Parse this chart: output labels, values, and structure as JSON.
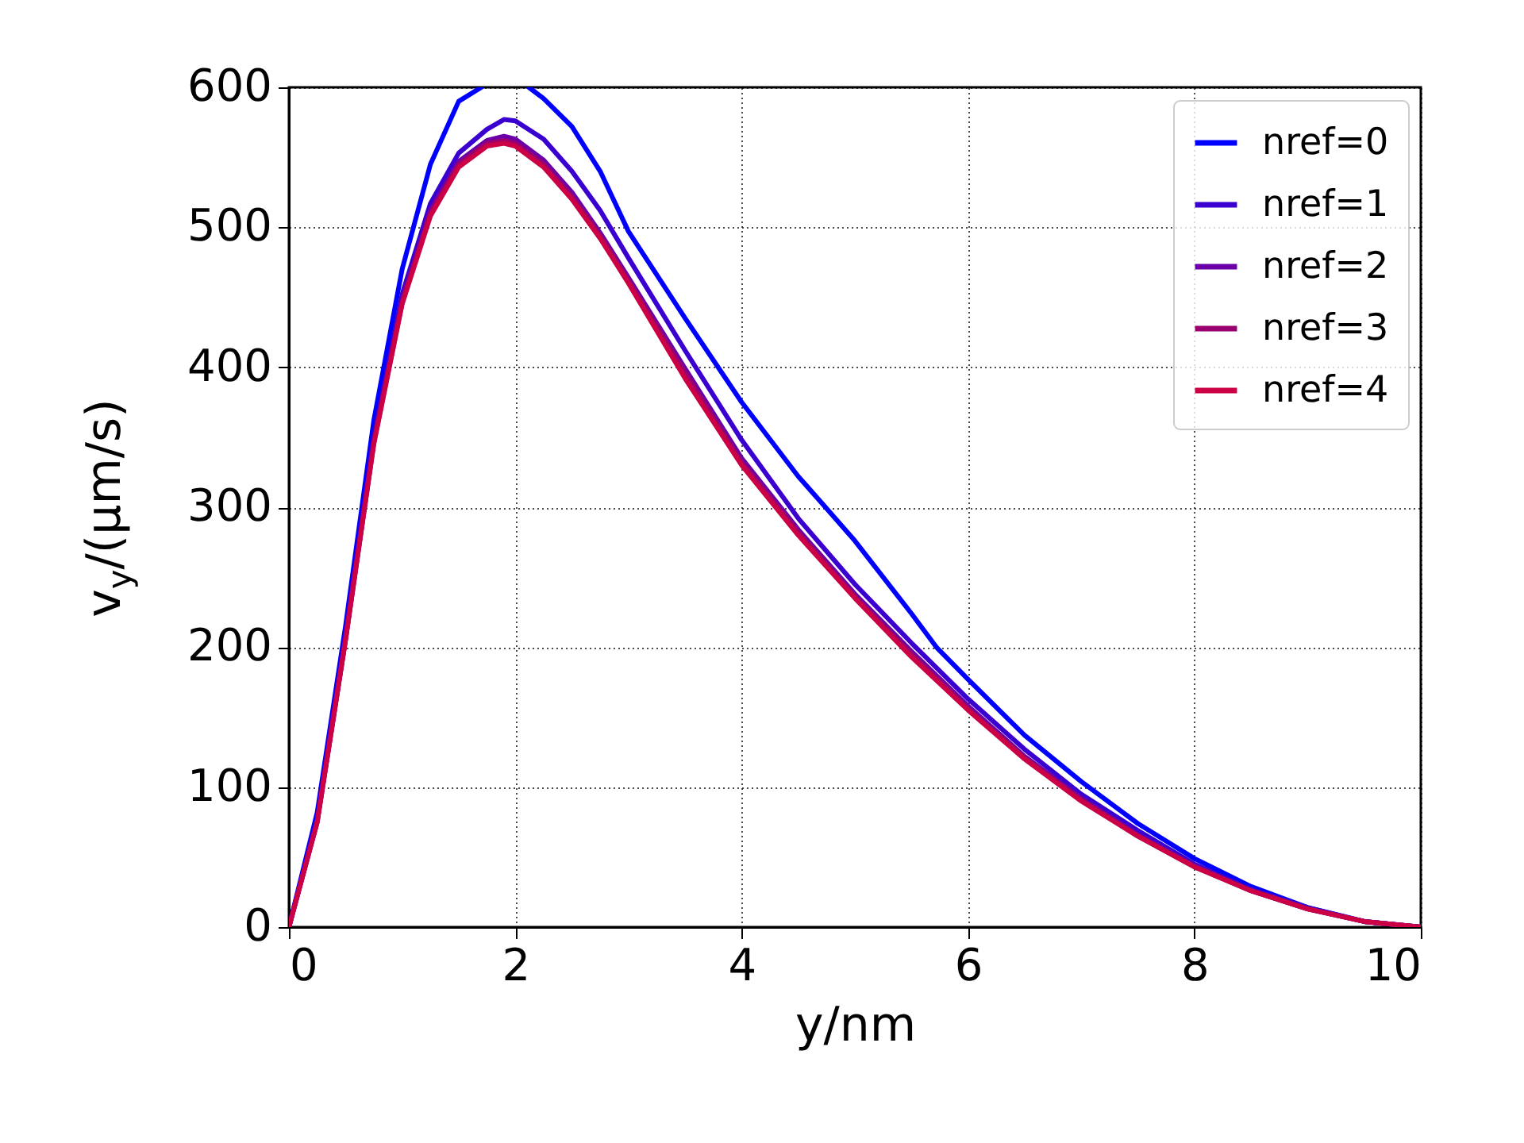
{
  "chart_data": {
    "type": "line",
    "xlabel": "y/nm",
    "ylabel": "v$_{y}$/(μm/s)",
    "xlim": [
      0,
      10
    ],
    "xticks": [
      0,
      2,
      4,
      6,
      8,
      10
    ],
    "ylim": [
      0,
      600
    ],
    "yticks": [
      0,
      100,
      200,
      300,
      400,
      500,
      600
    ],
    "grid": true,
    "legend": "top right",
    "line_style": "solid",
    "marker": "none",
    "x": [
      0,
      0.25,
      0.5,
      0.75,
      1,
      1.25,
      1.5,
      1.75,
      1.9,
      2,
      2.25,
      2.5,
      2.75,
      3,
      3.5,
      4,
      4.5,
      5,
      5.5,
      6,
      6.5,
      7,
      7.5,
      8,
      8.5,
      9,
      9.5,
      10
    ],
    "series": [
      {
        "name": "nref=0",
        "color": "#0000ff",
        "x": [
          0,
          0.25,
          0.5,
          0.75,
          1,
          1.25,
          1.5,
          1.7,
          1.75,
          2,
          2.12,
          2.25,
          2.5,
          2.75,
          3,
          3.5,
          4,
          4.5,
          4.74,
          5,
          5.5,
          5.72,
          6,
          6.5,
          7,
          7.5,
          8,
          8.5,
          9,
          9.5,
          10
        ],
        "values": [
          0,
          82,
          215,
          362,
          470,
          545,
          590,
          600,
          null,
          null,
          600,
          592,
          572,
          540,
          497,
          435,
          375,
          322,
          300,
          276,
          224,
          200,
          177,
          137,
          104,
          74,
          49,
          29,
          14,
          4,
          0
        ]
      },
      {
        "name": "nref=1",
        "color": "#3a00d0",
        "values": [
          0,
          77,
          208,
          350,
          452,
          517,
          553,
          570,
          577,
          576,
          563,
          540,
          512,
          478,
          412,
          348,
          292,
          245,
          203,
          163,
          127,
          95,
          69,
          45,
          27,
          14,
          4,
          0
        ]
      },
      {
        "name": "nref=2",
        "color": "#6c00a8",
        "values": [
          0,
          76,
          206,
          347,
          448,
          512,
          547,
          562,
          565,
          563,
          548,
          525,
          496,
          464,
          399,
          335,
          284,
          238,
          197,
          158,
          122,
          92,
          66,
          44,
          26,
          13,
          4,
          0
        ]
      },
      {
        "name": "nref=3",
        "color": "#9a0070",
        "values": [
          0,
          75,
          205,
          346,
          446,
          510,
          545,
          560,
          562,
          560,
          545,
          522,
          494,
          462,
          396,
          332,
          282,
          236,
          195,
          156,
          121,
          91,
          65,
          43,
          26,
          13,
          4,
          0
        ]
      },
      {
        "name": "nref=4",
        "color": "#cc0044",
        "values": [
          0,
          75,
          205,
          345,
          445,
          508,
          543,
          558,
          560,
          558,
          543,
          520,
          492,
          460,
          392,
          330,
          280,
          235,
          193,
          155,
          120,
          90,
          65,
          43,
          26,
          13,
          4,
          0
        ]
      }
    ]
  }
}
